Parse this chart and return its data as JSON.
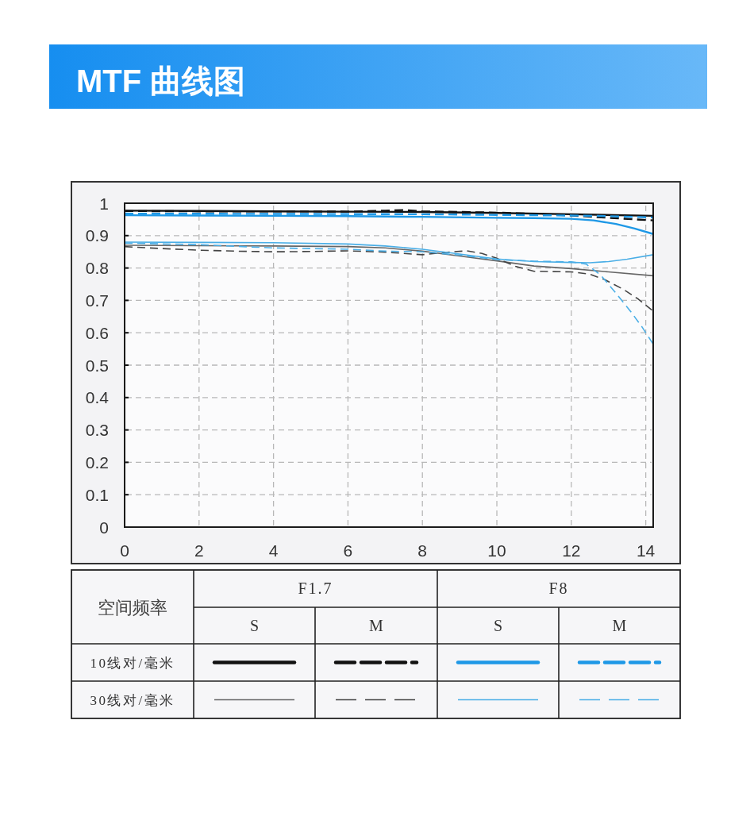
{
  "chart_data": {
    "type": "line",
    "title": "MTF 曲线图",
    "legend_title": "空间频率",
    "annotations": [
      "F1.7",
      "F8",
      "S",
      "M",
      "S",
      "M",
      "10线对/毫米",
      "30线对/毫米"
    ],
    "xlim": [
      0,
      14.2
    ],
    "ylim": [
      0,
      1
    ],
    "xticks": [
      0,
      2,
      4,
      6,
      8,
      10,
      12,
      14
    ],
    "yticks": [
      0,
      0.1,
      0.2,
      0.3,
      0.4,
      0.5,
      0.6,
      0.7,
      0.8,
      0.9,
      1
    ],
    "grid": true,
    "series": [
      {
        "color": "#111111",
        "line_style": "solid",
        "x": [
          0,
          2,
          4,
          6,
          8,
          10,
          12,
          14.2
        ],
        "values": [
          0.977,
          0.976,
          0.975,
          0.974,
          0.973,
          0.97,
          0.966,
          0.961
        ]
      },
      {
        "color": "#111111",
        "line_style": "dashed",
        "x": [
          0,
          2,
          4,
          6,
          7,
          7.5,
          8,
          9,
          10,
          11,
          12,
          13,
          14.2
        ],
        "values": [
          0.976,
          0.975,
          0.975,
          0.974,
          0.977,
          0.979,
          0.975,
          0.973,
          0.971,
          0.967,
          0.962,
          0.955,
          0.947
        ]
      },
      {
        "color": "#1e98e6",
        "line_style": "solid",
        "x": [
          0,
          2,
          4,
          6,
          8,
          10,
          11,
          12,
          12.6,
          13.2,
          13.7,
          14.2
        ],
        "values": [
          0.963,
          0.962,
          0.961,
          0.96,
          0.958,
          0.955,
          0.954,
          0.952,
          0.947,
          0.936,
          0.922,
          0.905
        ]
      },
      {
        "color": "#1e98e6",
        "line_style": "dashed",
        "x": [
          0,
          4,
          8,
          10,
          12,
          13,
          14.2
        ],
        "values": [
          0.968,
          0.967,
          0.966,
          0.964,
          0.962,
          0.96,
          0.956
        ]
      },
      {
        "color": "#666666",
        "line_style": "solid",
        "x": [
          0,
          2,
          4,
          6,
          7,
          8,
          9,
          10,
          11,
          12,
          13,
          14.2
        ],
        "values": [
          0.87,
          0.869,
          0.868,
          0.866,
          0.862,
          0.852,
          0.837,
          0.822,
          0.806,
          0.798,
          0.788,
          0.776
        ]
      },
      {
        "color": "#444444",
        "line_style": "dashed",
        "x": [
          0,
          1,
          2,
          3,
          4,
          5,
          6,
          7,
          8,
          8.8,
          9.2,
          9.6,
          10,
          10.5,
          11,
          12,
          12.5,
          12.9,
          13.4,
          13.8,
          14.2
        ],
        "values": [
          0.866,
          0.86,
          0.855,
          0.852,
          0.85,
          0.851,
          0.853,
          0.849,
          0.841,
          0.85,
          0.853,
          0.845,
          0.83,
          0.805,
          0.79,
          0.788,
          0.781,
          0.764,
          0.734,
          0.704,
          0.667
        ]
      },
      {
        "color": "#4aaee6",
        "line_style": "solid",
        "x": [
          0,
          2,
          4,
          6,
          7,
          8,
          9,
          10,
          11,
          12,
          12.5,
          13,
          13.5,
          14.2
        ],
        "values": [
          0.88,
          0.879,
          0.878,
          0.874,
          0.868,
          0.858,
          0.843,
          0.828,
          0.82,
          0.817,
          0.816,
          0.82,
          0.827,
          0.841
        ]
      },
      {
        "color": "#4aaee6",
        "line_style": "dashed",
        "x": [
          0,
          2,
          4,
          6,
          7,
          8,
          9,
          10,
          11,
          12,
          12.4,
          12.8,
          13.2,
          13.6,
          13.9,
          14.2
        ],
        "values": [
          0.877,
          0.872,
          0.862,
          0.858,
          0.852,
          0.85,
          0.84,
          0.826,
          0.821,
          0.819,
          0.812,
          0.777,
          0.722,
          0.665,
          0.618,
          0.565
        ]
      }
    ]
  }
}
